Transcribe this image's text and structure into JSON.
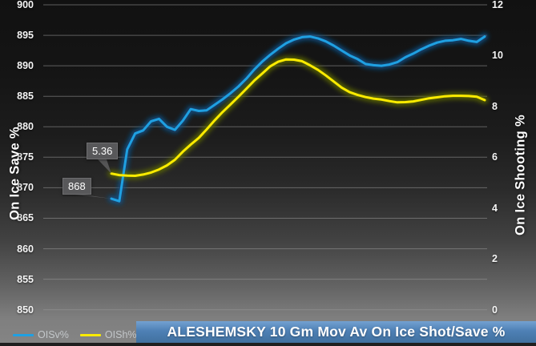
{
  "title_bar": {
    "text": "ALESHEMSKY 10 Gm Mov Av On Ice Shot/Save %",
    "bg_color": "#4E80B5"
  },
  "chart_data": {
    "type": "line",
    "title": "ALESHEMSKY 10 Gm Mov Av On Ice Shot/Save %",
    "grid": true,
    "legend_position": "bottom-left",
    "left_axis": {
      "label": "On Ice Save %",
      "min": 850,
      "max": 900,
      "tick_step": 5,
      "ticks": [
        900,
        895,
        890,
        885,
        880,
        875,
        870,
        865,
        860,
        855,
        850
      ]
    },
    "right_axis": {
      "label": "On Ice Shooting %",
      "min": 0,
      "max": 12,
      "tick_step": 2,
      "ticks": [
        12,
        10,
        8,
        6,
        4,
        2,
        0
      ]
    },
    "x_axis": {
      "label": "",
      "ticks": []
    },
    "series": [
      {
        "name": "OISv%",
        "axis": "left",
        "color": "#1FA0E2",
        "glow_color": "#0c4f85",
        "values": [
          868.2,
          867.8,
          876.3,
          878.9,
          879.4,
          880.9,
          881.3,
          880.0,
          879.5,
          881.0,
          882.9,
          882.6,
          882.7,
          883.6,
          884.5,
          885.5,
          886.6,
          887.9,
          889.4,
          890.7,
          891.8,
          892.8,
          893.7,
          894.3,
          894.7,
          894.8,
          894.5,
          894.0,
          893.3,
          892.5,
          891.7,
          891.1,
          890.3,
          890.1,
          890.0,
          890.2,
          890.6,
          891.4,
          892.0,
          892.7,
          893.3,
          893.8,
          894.1,
          894.2,
          894.4,
          894.1,
          893.9,
          894.8
        ]
      },
      {
        "name": "OISh%",
        "axis": "right",
        "color": "#FBEB00",
        "glow_color": "#5f6b00",
        "values": [
          5.36,
          5.3,
          5.28,
          5.27,
          5.32,
          5.4,
          5.52,
          5.68,
          5.9,
          6.22,
          6.5,
          6.76,
          7.1,
          7.45,
          7.78,
          8.08,
          8.38,
          8.7,
          9.02,
          9.3,
          9.58,
          9.76,
          9.85,
          9.84,
          9.78,
          9.62,
          9.44,
          9.22,
          8.98,
          8.74,
          8.56,
          8.45,
          8.37,
          8.31,
          8.27,
          8.21,
          8.16,
          8.17,
          8.2,
          8.26,
          8.32,
          8.36,
          8.4,
          8.42,
          8.42,
          8.41,
          8.38,
          8.25
        ]
      }
    ],
    "annotations": [
      {
        "text": "5.36",
        "series_index": 1,
        "point_index": 0
      },
      {
        "text": "868",
        "series_index": 0,
        "point_index": 0
      }
    ]
  },
  "legend": {
    "items": [
      {
        "label": "OISv%"
      },
      {
        "label": "OISh%"
      }
    ]
  },
  "colors": {
    "gridline": "#9b9b9b",
    "callout_bg": "#58585a",
    "tick_text": "#f5f5f5"
  }
}
